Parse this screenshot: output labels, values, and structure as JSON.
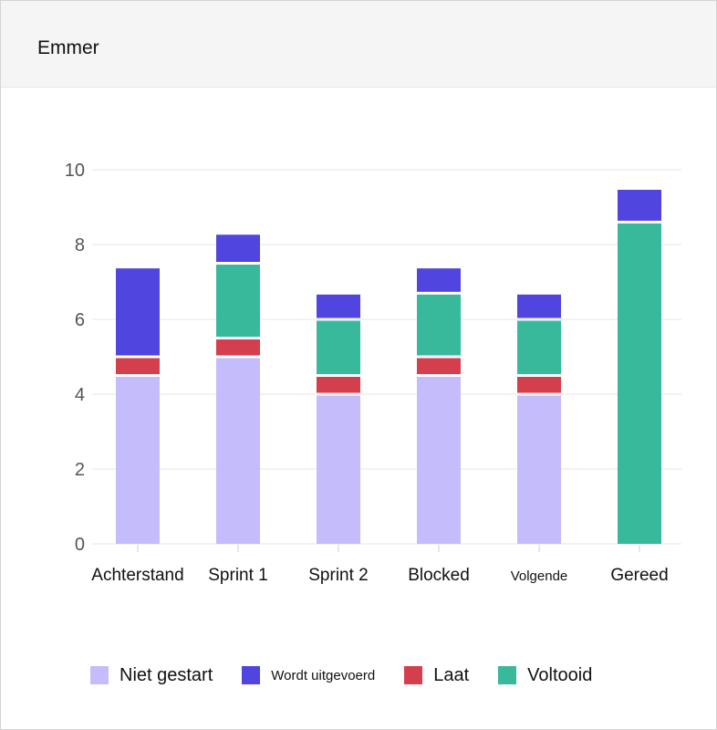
{
  "card": {
    "title": "Emmer"
  },
  "colors": {
    "niet_gestart": "#c4bcfb",
    "wordt_uitgevoerd": "#5145e0",
    "laat": "#d43f4d",
    "voltooid": "#39b99b",
    "grid": "#e6e6e6"
  },
  "chart_data": {
    "type": "bar",
    "stacked": true,
    "categories": [
      "Achterstand",
      "Sprint 1",
      "Sprint 2",
      "Blocked",
      "Volgende",
      "Gereed"
    ],
    "yticks": [
      "0",
      "2",
      "4",
      "6",
      "8",
      "10"
    ],
    "ylim": [
      0,
      10
    ],
    "grid": true,
    "legend_position": "bottom",
    "series": [
      {
        "name": "Niet gestart",
        "color_key": "niet_gestart",
        "values": [
          4.5,
          5,
          4,
          4.5,
          4,
          0
        ]
      },
      {
        "name": "Laat",
        "color_key": "laat",
        "values": [
          0.5,
          0.5,
          0.5,
          0.5,
          0.5,
          0
        ]
      },
      {
        "name": "Voltooid",
        "color_key": "voltooid",
        "values": [
          0,
          2,
          1.5,
          1.7,
          1.5,
          8.6
        ]
      },
      {
        "name": "Wordt uitgevoerd",
        "color_key": "wordt_uitgevoerd",
        "values": [
          2.4,
          0.8,
          0.7,
          0.7,
          0.7,
          0.9
        ]
      }
    ]
  },
  "legend": [
    {
      "label": "Niet gestart",
      "color_key": "niet_gestart"
    },
    {
      "label": "Wordt uitgevoerd",
      "color_key": "wordt_uitgevoerd"
    },
    {
      "label": "Laat",
      "color_key": "laat"
    },
    {
      "label": "Voltooid",
      "color_key": "voltooid"
    }
  ]
}
